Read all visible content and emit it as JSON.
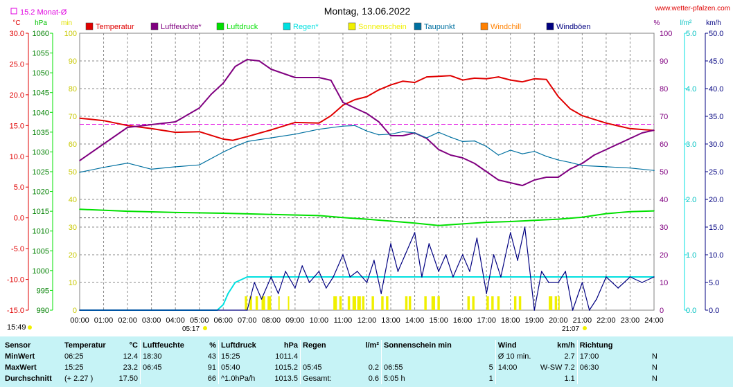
{
  "header": {
    "title": "Montag, 13.06.2022",
    "site": "www.wetter-pfalzen.com",
    "monthavg_label": "15.2 Monat-Ø",
    "units_left": [
      "°C",
      "hPa",
      "min"
    ],
    "units_right": [
      "%",
      "l/m²",
      "km/h"
    ]
  },
  "colors": {
    "temperature": "#e00000",
    "humidity": "#800080",
    "pressure": "#00e000",
    "rain": "#00e0e0",
    "sunshine": "#f0f000",
    "dewpoint": "#0070a0",
    "windchill": "#ff8000",
    "gusts": "#000080",
    "monthavg": "#e000e0"
  },
  "legend": [
    {
      "key": "temperature",
      "label": "Temperatur"
    },
    {
      "key": "humidity",
      "label": "Luftfeuchte*"
    },
    {
      "key": "pressure",
      "label": "Luftdruck"
    },
    {
      "key": "rain",
      "label": "Regen*"
    },
    {
      "key": "sunshine",
      "label": "Sonnenschein"
    },
    {
      "key": "dewpoint",
      "label": "Taupunkt"
    },
    {
      "key": "windchill",
      "label": "Windchill"
    },
    {
      "key": "gusts",
      "label": "Windböen"
    }
  ],
  "axes": {
    "temp_ticks": [
      "30.0",
      "25.0",
      "20.0",
      "15.0",
      "10.0",
      "5.0",
      "0.0",
      "-5.0",
      "-10.0",
      "-15.0"
    ],
    "hpa_ticks": [
      "1060",
      "1055",
      "1050",
      "1045",
      "1040",
      "1035",
      "1030",
      "1025",
      "1020",
      "1015",
      "1010",
      "1005",
      "1000",
      "995",
      "990"
    ],
    "min_ticks": [
      "100",
      "90",
      "80",
      "70",
      "60",
      "50",
      "40",
      "30",
      "20",
      "10",
      "0"
    ],
    "pct_ticks": [
      "100",
      "90",
      "80",
      "70",
      "60",
      "50",
      "40",
      "30",
      "20",
      "10",
      "0"
    ],
    "rain_ticks": [
      "5.0",
      "4.0",
      "3.0",
      "2.0",
      "1.0",
      "0.0"
    ],
    "kmh_ticks": [
      "50.0",
      "45.0",
      "40.0",
      "35.0",
      "30.0",
      "25.0",
      "20.0",
      "15.0",
      "10.0",
      "5.0",
      "0.0"
    ],
    "time_ticks": [
      "00:00",
      "01:00",
      "02:00",
      "03:00",
      "04:00",
      "05:00",
      "06:00",
      "07:00",
      "08:00",
      "09:00",
      "10:00",
      "11:00",
      "12:00",
      "13:00",
      "14:00",
      "15:00",
      "16:00",
      "17:00",
      "18:00",
      "19:00",
      "20:00",
      "21:00",
      "22:00",
      "23:00",
      "24:00"
    ],
    "sunrise": "05:17",
    "sunset": "21:07",
    "tl_time": "15:49"
  },
  "chart_data": {
    "type": "line",
    "title": "Montag, 13.06.2022",
    "x_unit": "hours",
    "monthavg_temp": 15.2,
    "series": [
      {
        "name": "Temperatur",
        "key": "temperature",
        "axis": "temp",
        "x": [
          0,
          1,
          2,
          3,
          4,
          5,
          6,
          6.4,
          7,
          8,
          9,
          10,
          10.5,
          11,
          11.5,
          12,
          12.5,
          13,
          13.5,
          14,
          14.5,
          15,
          15.5,
          16,
          16.5,
          17,
          17.5,
          18,
          18.5,
          19,
          19.5,
          20,
          20.5,
          21,
          22,
          23,
          24
        ],
        "y": [
          16.2,
          15.8,
          15.0,
          14.5,
          13.9,
          14.0,
          12.8,
          12.6,
          13.2,
          14.3,
          15.5,
          15.4,
          16.6,
          18.3,
          19.2,
          19.7,
          20.8,
          21.6,
          22.2,
          22.0,
          22.9,
          23.0,
          23.1,
          22.4,
          22.7,
          22.6,
          22.9,
          22.4,
          22.1,
          22.6,
          22.5,
          19.7,
          17.7,
          16.6,
          15.4,
          14.5,
          14.2
        ]
      },
      {
        "name": "Luftfeuchte*",
        "key": "humidity",
        "axis": "pct",
        "x": [
          0,
          1,
          2,
          3,
          4,
          5,
          5.5,
          6,
          6.5,
          7,
          7.5,
          8,
          9,
          10,
          10.5,
          11,
          11.5,
          12,
          12.5,
          13,
          13.5,
          14,
          14.5,
          15,
          15.5,
          16,
          16.5,
          17,
          17.5,
          18,
          18.5,
          19,
          19.5,
          20,
          20.5,
          21,
          21.5,
          22,
          22.5,
          23,
          23.5,
          24
        ],
        "y": [
          54,
          60,
          66,
          67,
          68,
          73,
          78,
          82,
          88,
          90.5,
          90,
          87,
          84,
          84,
          83,
          75,
          73,
          71,
          68,
          63,
          63,
          64,
          62,
          58,
          56,
          55,
          53,
          50,
          47,
          46,
          45,
          47,
          48,
          48,
          51,
          53,
          56,
          58,
          60,
          62,
          64,
          65
        ]
      },
      {
        "name": "Luftdruck",
        "key": "pressure",
        "axis": "hpa",
        "x": [
          0,
          2,
          4,
          6,
          8,
          10,
          11,
          12,
          13,
          14,
          15,
          16,
          17,
          18,
          19,
          20,
          21,
          22,
          23,
          24
        ],
        "y": [
          1015.5,
          1015.0,
          1014.7,
          1014.5,
          1014.2,
          1013.9,
          1013.4,
          1013.0,
          1012.5,
          1012.0,
          1011.4,
          1011.8,
          1012.2,
          1012.4,
          1012.7,
          1013.0,
          1013.5,
          1014.4,
          1014.9,
          1015.1
        ]
      },
      {
        "name": "Regen*",
        "key": "rain",
        "axis": "rain",
        "x": [
          0,
          5.75,
          6.0,
          6.2,
          6.5,
          7.0,
          7.5,
          24
        ],
        "y": [
          0,
          0,
          0.1,
          0.3,
          0.5,
          0.6,
          0.6,
          0.6
        ]
      },
      {
        "name": "Taupunkt",
        "key": "dewpoint",
        "axis": "temp",
        "x": [
          0,
          1,
          2,
          3,
          4,
          5,
          6,
          6.5,
          7,
          8,
          9,
          10,
          11,
          11.5,
          12,
          12.5,
          13,
          13.5,
          14,
          14.5,
          15,
          15.5,
          16,
          16.5,
          17,
          17.5,
          18,
          18.5,
          19,
          19.5,
          20,
          20.5,
          21,
          22,
          23,
          24
        ],
        "y": [
          7.4,
          8.2,
          8.9,
          7.9,
          8.3,
          8.6,
          10.7,
          11.6,
          12.4,
          13.0,
          13.6,
          14.4,
          14.9,
          15.0,
          14.1,
          13.5,
          13.6,
          14.0,
          13.8,
          13.0,
          13.9,
          13.1,
          12.4,
          12.5,
          11.6,
          10.2,
          11.0,
          10.4,
          10.8,
          10.0,
          9.4,
          9.0,
          8.5,
          8.3,
          8.1,
          7.7
        ]
      },
      {
        "name": "Windböen",
        "key": "gusts",
        "axis": "kmh",
        "x": [
          0,
          7,
          7.3,
          7.6,
          8,
          8.3,
          8.6,
          9,
          9.3,
          9.6,
          10,
          10.3,
          10.6,
          11,
          11.3,
          11.6,
          12,
          12.3,
          12.6,
          13,
          13.3,
          13.6,
          14,
          14.3,
          14.6,
          15,
          15.3,
          15.6,
          16,
          16.3,
          16.6,
          17,
          17.3,
          17.6,
          18,
          18.3,
          18.6,
          19,
          19.3,
          19.6,
          20,
          20.3,
          20.6,
          21,
          21.3,
          21.6,
          22,
          22.5,
          23,
          23.5,
          24
        ],
        "y": [
          0,
          0,
          5,
          2,
          6,
          3,
          7,
          4,
          8,
          5,
          7,
          4,
          6,
          10,
          6,
          7,
          5,
          9,
          3,
          12,
          7,
          10,
          14,
          6,
          12,
          7,
          10,
          6,
          10,
          7,
          13,
          3,
          10,
          6,
          14,
          9,
          15,
          0,
          7,
          5,
          5,
          7,
          0,
          5,
          0,
          2,
          6,
          4,
          6,
          5,
          6
        ]
      }
    ],
    "sunshine_hours": [
      [
        6.9,
        7.0
      ],
      [
        7.1,
        7.2
      ],
      [
        7.35,
        7.45
      ],
      [
        7.6,
        7.75
      ],
      [
        7.85,
        8.0
      ],
      [
        8.3,
        8.35
      ],
      [
        8.7,
        8.75
      ],
      [
        10.6,
        10.75
      ],
      [
        10.85,
        10.95
      ],
      [
        11.2,
        11.3
      ],
      [
        11.4,
        11.55
      ],
      [
        11.6,
        11.75
      ],
      [
        11.8,
        11.9
      ],
      [
        12.2,
        12.3
      ],
      [
        12.6,
        12.7
      ],
      [
        12.8,
        12.9
      ],
      [
        13.6,
        13.7
      ],
      [
        13.75,
        13.85
      ],
      [
        14.4,
        14.5
      ],
      [
        14.7,
        14.85
      ],
      [
        14.95,
        15.05
      ],
      [
        16.2,
        16.3
      ],
      [
        16.4,
        16.5
      ],
      [
        17.0,
        17.1
      ],
      [
        17.2,
        17.3
      ],
      [
        17.45,
        17.55
      ],
      [
        18.15,
        18.25
      ],
      [
        18.35,
        18.45
      ],
      [
        19.6,
        19.75
      ],
      [
        19.85,
        19.95
      ],
      [
        20.0,
        20.05
      ]
    ]
  },
  "stats": {
    "headers": {
      "sensor": "Sensor",
      "temp": "Temperatur",
      "temp_unit": "°C",
      "hum": "Luftfeuchte",
      "hum_unit": "%",
      "press": "Luftdruck",
      "press_unit": "hPa",
      "rain": "Regen",
      "rain_unit": "l/m²",
      "sun": "Sonnenschein min",
      "wind": "Wind",
      "wind_unit": "km/h",
      "dir": "Richtung"
    },
    "rows": [
      {
        "label": "MinWert",
        "temp_time": "06:25",
        "temp_val": "12.4",
        "hum_time": "18:30",
        "hum_val": "43",
        "press_time": "15:25",
        "press_val": "1011.4",
        "rain_time": "",
        "rain_val": "",
        "sun_time": "",
        "sun_val": "",
        "wind_time": "Ø 10 min.",
        "wind_val": "2.7",
        "dir_time": "17:00",
        "dir_val": "N"
      },
      {
        "label": "MaxWert",
        "temp_time": "15:25",
        "temp_val": "23.2",
        "hum_time": "06:45",
        "hum_val": "91",
        "press_time": "05:40",
        "press_val": "1015.2",
        "rain_time": "05:45",
        "rain_val": "0.2",
        "sun_time": "06:55",
        "sun_val": "5",
        "wind_time": "14:00",
        "wind_val": "W-SW 7.2",
        "dir_time": "06:30",
        "dir_val": "N"
      },
      {
        "label": "Durchschnitt",
        "temp_time": "(+ 2.27 )",
        "temp_val": "17.50",
        "hum_time": "",
        "hum_val": "66",
        "press_time": "^1.0hPa/h",
        "press_val": "1013.5",
        "rain_time": "Gesamt:",
        "rain_val": "0.6",
        "sun_time": "5:05 h",
        "sun_val": "1",
        "wind_time": "",
        "wind_val": "1.1",
        "dir_time": "",
        "dir_val": "N"
      }
    ]
  }
}
